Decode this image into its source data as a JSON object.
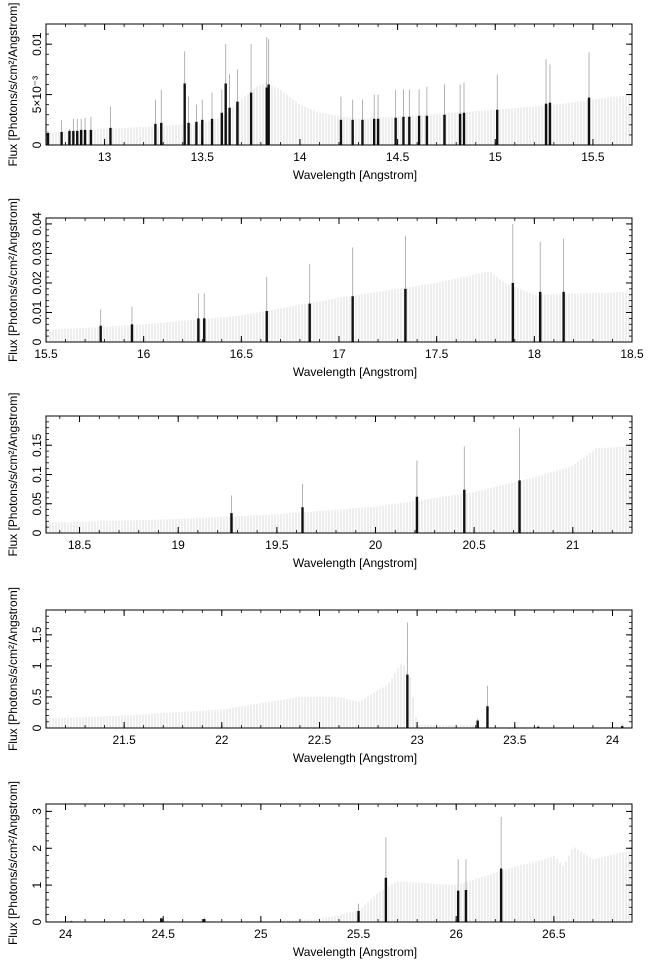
{
  "chart_data": [
    {
      "type": "bar",
      "xlabel": "Wavelength [Angstrom]",
      "ylabel": "Flux [Photons/s/cm²/Angstrom]",
      "xlim": [
        12.7,
        15.7
      ],
      "ylim": [
        0,
        0.012
      ],
      "xticks": [
        13,
        13.5,
        14,
        14.5,
        15,
        15.5
      ],
      "yticks": [
        0,
        0.005,
        0.01
      ],
      "ytick_labels": [
        "0",
        "5×10⁻³",
        "0.01"
      ],
      "continuum": [
        [
          12.7,
          0.0012
        ],
        [
          13.0,
          0.0016
        ],
        [
          13.3,
          0.0019
        ],
        [
          13.5,
          0.0022
        ],
        [
          13.6,
          0.0028
        ],
        [
          13.7,
          0.0045
        ],
        [
          13.78,
          0.0058
        ],
        [
          13.83,
          0.0062
        ],
        [
          13.9,
          0.0055
        ],
        [
          14.0,
          0.004
        ],
        [
          14.1,
          0.0032
        ],
        [
          14.3,
          0.0026
        ],
        [
          14.5,
          0.0028
        ],
        [
          15.0,
          0.0035
        ],
        [
          15.3,
          0.004
        ],
        [
          15.7,
          0.005
        ]
      ],
      "lines": [
        {
          "x": 12.71,
          "y": 0.0012,
          "err": 0.0014
        },
        {
          "x": 12.78,
          "y": 0.0013,
          "err": 0.0025
        },
        {
          "x": 12.82,
          "y": 0.0014,
          "err": 0.0016
        },
        {
          "x": 12.84,
          "y": 0.0014,
          "err": 0.0026
        },
        {
          "x": 12.86,
          "y": 0.0014,
          "err": 0.0026
        },
        {
          "x": 12.88,
          "y": 0.0015,
          "err": 0.0026
        },
        {
          "x": 12.9,
          "y": 0.0015,
          "err": 0.0027
        },
        {
          "x": 12.93,
          "y": 0.0015,
          "err": 0.0028
        },
        {
          "x": 13.03,
          "y": 0.0017,
          "err": 0.0038
        },
        {
          "x": 13.26,
          "y": 0.0021,
          "err": 0.0045
        },
        {
          "x": 13.29,
          "y": 0.0022,
          "err": 0.0055
        },
        {
          "x": 13.41,
          "y": 0.0061,
          "err": 0.0093
        },
        {
          "x": 13.43,
          "y": 0.0022,
          "err": 0.0048
        },
        {
          "x": 13.47,
          "y": 0.0023,
          "err": 0.004
        },
        {
          "x": 13.5,
          "y": 0.0025,
          "err": 0.0045
        },
        {
          "x": 13.55,
          "y": 0.0026,
          "err": 0.0052
        },
        {
          "x": 13.6,
          "y": 0.0032,
          "err": 0.0055
        },
        {
          "x": 13.62,
          "y": 0.0061,
          "err": 0.01
        },
        {
          "x": 13.64,
          "y": 0.0037,
          "err": 0.007
        },
        {
          "x": 13.68,
          "y": 0.0043,
          "err": 0.0075
        },
        {
          "x": 13.75,
          "y": 0.0052,
          "err": 0.01
        },
        {
          "x": 13.83,
          "y": 0.0057,
          "err": 0.0107
        },
        {
          "x": 13.84,
          "y": 0.006,
          "err": 0.0105
        },
        {
          "x": 14.21,
          "y": 0.0025,
          "err": 0.0048
        },
        {
          "x": 14.27,
          "y": 0.0025,
          "err": 0.0045
        },
        {
          "x": 14.32,
          "y": 0.0025,
          "err": 0.0045
        },
        {
          "x": 14.38,
          "y": 0.0026,
          "err": 0.005
        },
        {
          "x": 14.4,
          "y": 0.0026,
          "err": 0.005
        },
        {
          "x": 14.49,
          "y": 0.0027,
          "err": 0.0055
        },
        {
          "x": 14.53,
          "y": 0.0028,
          "err": 0.0055
        },
        {
          "x": 14.56,
          "y": 0.0028,
          "err": 0.0055
        },
        {
          "x": 14.61,
          "y": 0.0029,
          "err": 0.0055
        },
        {
          "x": 14.65,
          "y": 0.0029,
          "err": 0.0058
        },
        {
          "x": 14.74,
          "y": 0.003,
          "err": 0.006
        },
        {
          "x": 14.82,
          "y": 0.0031,
          "err": 0.006
        },
        {
          "x": 14.84,
          "y": 0.0032,
          "err": 0.0062
        },
        {
          "x": 15.01,
          "y": 0.0035,
          "err": 0.007
        },
        {
          "x": 15.26,
          "y": 0.0041,
          "err": 0.0085
        },
        {
          "x": 15.28,
          "y": 0.0042,
          "err": 0.008
        },
        {
          "x": 15.48,
          "y": 0.0047,
          "err": 0.0092
        }
      ]
    },
    {
      "type": "bar",
      "xlabel": "Wavelength [Angstrom]",
      "ylabel": "Flux [Photons/s/cm²/Angstrom]",
      "xlim": [
        15.5,
        18.5
      ],
      "ylim": [
        0,
        0.042
      ],
      "xticks": [
        15.5,
        16,
        16.5,
        17,
        17.5,
        18,
        18.5
      ],
      "yticks": [
        0,
        0.01,
        0.02,
        0.03,
        0.04
      ],
      "ytick_labels": [
        "0",
        "0.01",
        "0.02",
        "0.03",
        "0.04"
      ],
      "continuum": [
        [
          15.5,
          0.004
        ],
        [
          16.0,
          0.006
        ],
        [
          16.5,
          0.009
        ],
        [
          17.0,
          0.015
        ],
        [
          17.5,
          0.02
        ],
        [
          17.7,
          0.023
        ],
        [
          17.77,
          0.024
        ],
        [
          17.85,
          0.02
        ],
        [
          18.0,
          0.016
        ],
        [
          18.5,
          0.017
        ]
      ],
      "lines": [
        {
          "x": 15.78,
          "y": 0.0055,
          "err": 0.011
        },
        {
          "x": 15.94,
          "y": 0.006,
          "err": 0.012
        },
        {
          "x": 16.28,
          "y": 0.008,
          "err": 0.0165
        },
        {
          "x": 16.31,
          "y": 0.008,
          "err": 0.0165
        },
        {
          "x": 16.63,
          "y": 0.0105,
          "err": 0.022
        },
        {
          "x": 16.85,
          "y": 0.013,
          "err": 0.0265
        },
        {
          "x": 17.07,
          "y": 0.0155,
          "err": 0.032
        },
        {
          "x": 17.34,
          "y": 0.018,
          "err": 0.036
        },
        {
          "x": 17.89,
          "y": 0.02,
          "err": 0.04
        },
        {
          "x": 18.03,
          "y": 0.017,
          "err": 0.034
        },
        {
          "x": 18.15,
          "y": 0.017,
          "err": 0.035
        }
      ]
    },
    {
      "type": "bar",
      "xlabel": "Wavelength [Angstrom]",
      "ylabel": "Flux [Photons/s/cm²/Angstrom]",
      "xlim": [
        18.33,
        21.3
      ],
      "ylim": [
        0,
        0.2
      ],
      "xticks": [
        18.5,
        19,
        19.5,
        20,
        20.5,
        21
      ],
      "yticks": [
        0,
        0.05,
        0.1,
        0.15
      ],
      "ytick_labels": [
        "0",
        "0.05",
        "0.1",
        "0.15"
      ],
      "continuum": [
        [
          18.33,
          0.018
        ],
        [
          18.5,
          0.019
        ],
        [
          19.0,
          0.024
        ],
        [
          19.5,
          0.032
        ],
        [
          20.0,
          0.045
        ],
        [
          20.5,
          0.07
        ],
        [
          20.8,
          0.095
        ],
        [
          21.0,
          0.115
        ],
        [
          21.12,
          0.145
        ],
        [
          21.3,
          0.148
        ]
      ],
      "lines": [
        {
          "x": 19.27,
          "y": 0.034,
          "err": 0.064
        },
        {
          "x": 19.63,
          "y": 0.044,
          "err": 0.084
        },
        {
          "x": 20.21,
          "y": 0.062,
          "err": 0.124
        },
        {
          "x": 20.45,
          "y": 0.074,
          "err": 0.148
        },
        {
          "x": 20.73,
          "y": 0.09,
          "err": 0.18
        }
      ]
    },
    {
      "type": "bar",
      "xlabel": "Wavelength [Angstrom]",
      "ylabel": "Flux [Photons/s/cm²/Angstrom]",
      "xlim": [
        21.1,
        24.1
      ],
      "ylim": [
        0,
        1.9
      ],
      "xticks": [
        21.5,
        22,
        22.5,
        23,
        23.5,
        24
      ],
      "yticks": [
        0,
        0.5,
        1,
        1.5
      ],
      "ytick_labels": [
        "0",
        "0.5",
        "1",
        "1.5"
      ],
      "continuum": [
        [
          21.1,
          0.15
        ],
        [
          21.5,
          0.2
        ],
        [
          22.0,
          0.3
        ],
        [
          22.4,
          0.5
        ],
        [
          22.6,
          0.5
        ],
        [
          22.7,
          0.42
        ],
        [
          22.85,
          0.7
        ],
        [
          22.92,
          1.05
        ],
        [
          22.96,
          0.9
        ],
        [
          23.0,
          0.05
        ],
        [
          23.3,
          0.05
        ],
        [
          23.31,
          0.02
        ],
        [
          24.1,
          0.02
        ]
      ],
      "lines": [
        {
          "x": 22.95,
          "y": 0.86,
          "err": 1.7
        },
        {
          "x": 23.31,
          "y": 0.12,
          "err": 0.15
        },
        {
          "x": 23.36,
          "y": 0.35,
          "err": 0.68
        },
        {
          "x": 23.62,
          "y": 0.02,
          "err": 0.04
        },
        {
          "x": 24.05,
          "y": 0.03,
          "err": 0.06
        }
      ]
    },
    {
      "type": "bar",
      "xlabel": "Wavelength [Angstrom]",
      "ylabel": "Flux [Photons/s/cm²/Angstrom]",
      "xlim": [
        23.9,
        26.9
      ],
      "ylim": [
        0,
        3.2
      ],
      "xticks": [
        24,
        24.5,
        25,
        25.5,
        26,
        26.5
      ],
      "yticks": [
        0,
        1,
        2,
        3
      ],
      "ytick_labels": [
        "0",
        "1",
        "2",
        "3"
      ],
      "continuum": [
        [
          23.9,
          0.03
        ],
        [
          25.0,
          0.03
        ],
        [
          25.3,
          0.08
        ],
        [
          25.5,
          0.3
        ],
        [
          25.6,
          0.8
        ],
        [
          25.7,
          1.1
        ],
        [
          26.0,
          1.0
        ],
        [
          26.3,
          1.5
        ],
        [
          26.45,
          1.7
        ],
        [
          26.5,
          1.8
        ],
        [
          26.55,
          1.5
        ],
        [
          26.6,
          2.05
        ],
        [
          26.7,
          1.7
        ],
        [
          26.9,
          1.95
        ]
      ],
      "lines": [
        {
          "x": 24.03,
          "y": 0.02,
          "err": 0.04
        },
        {
          "x": 24.49,
          "y": 0.1,
          "err": 0.12
        },
        {
          "x": 24.71,
          "y": 0.08,
          "err": 0.12
        },
        {
          "x": 25.5,
          "y": 0.3,
          "err": 0.5
        },
        {
          "x": 25.64,
          "y": 1.2,
          "err": 2.3
        },
        {
          "x": 26.01,
          "y": 0.85,
          "err": 1.7
        },
        {
          "x": 26.05,
          "y": 0.87,
          "err": 1.7
        },
        {
          "x": 26.23,
          "y": 1.45,
          "err": 2.85
        }
      ]
    }
  ]
}
